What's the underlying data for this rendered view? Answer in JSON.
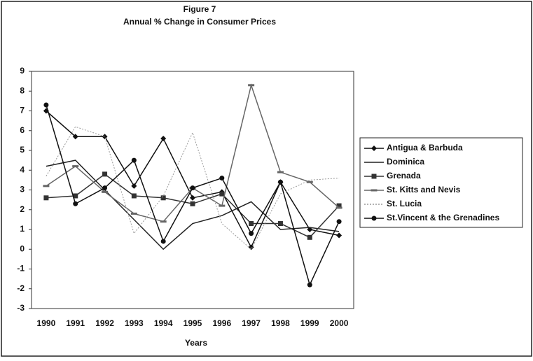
{
  "chart_data": {
    "type": "line",
    "title": "Figure 7",
    "subtitle": "Annual % Change in Consumer Prices",
    "x_label": "Years",
    "categories": [
      "1990",
      "1991",
      "1992",
      "1993",
      "1994",
      "1995",
      "1996",
      "1997",
      "1998",
      "1999",
      "2000"
    ],
    "series": [
      {
        "name": "Antigua & Barbuda",
        "color": "#111111",
        "marker": "diamond",
        "values": [
          7.0,
          5.7,
          5.7,
          3.2,
          5.6,
          2.6,
          2.9,
          0.1,
          3.4,
          1.0,
          0.7
        ]
      },
      {
        "name": "Dominica",
        "color": "#222222",
        "marker": "none",
        "values": [
          4.2,
          4.5,
          3.0,
          1.5,
          0.0,
          1.3,
          1.7,
          2.4,
          1.0,
          1.1,
          0.9
        ]
      },
      {
        "name": "Grenada",
        "color": "#333333",
        "marker": "square",
        "values": [
          2.6,
          2.7,
          3.8,
          2.7,
          2.6,
          2.3,
          2.8,
          1.3,
          1.3,
          0.6,
          2.2
        ]
      },
      {
        "name": "St. Kitts and Nevis",
        "color": "#666666",
        "marker": "dash",
        "values": [
          3.2,
          4.2,
          2.9,
          1.8,
          1.4,
          3.1,
          2.2,
          8.3,
          3.9,
          3.4,
          2.1
        ]
      },
      {
        "name": "St. Lucia",
        "color": "#999999",
        "marker": "none",
        "style": "dotted",
        "values": [
          3.7,
          6.2,
          5.7,
          0.8,
          2.7,
          5.9,
          1.3,
          0.0,
          2.8,
          3.5,
          3.6
        ]
      },
      {
        "name": "St.Vincent & the Grenadines",
        "color": "#111111",
        "marker": "circle",
        "values": [
          7.3,
          2.3,
          3.1,
          4.5,
          0.4,
          3.1,
          3.6,
          0.8,
          3.4,
          -1.8,
          1.4
        ]
      }
    ],
    "ylim": [
      -3,
      9
    ],
    "yticks": [
      -3,
      -2,
      -1,
      0,
      1,
      2,
      3,
      4,
      5,
      6,
      7,
      8,
      9
    ],
    "legend": "right",
    "grid": false
  }
}
